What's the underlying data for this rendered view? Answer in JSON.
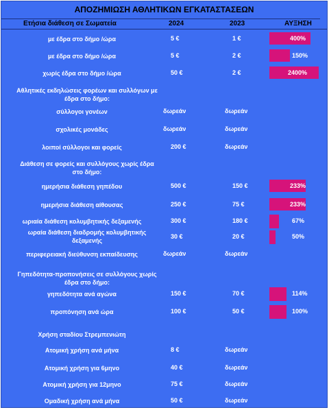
{
  "title": "ΑΠΟΖΗΜΙΩΣΗ ΑΘΛΗΤΙΚΩΝ ΕΓΚΑΤΑΣΤΑΣΕΩΝ",
  "columns": {
    "desc": "Ετήσια διάθεση σε Σωματεία",
    "y2024": "2024",
    "y2023": "2023",
    "increase": "ΑΥΞΗΣΗ"
  },
  "colors": {
    "background": "#3d6df2",
    "bar": "#d6137a"
  },
  "rows": [
    {
      "label": "με έδρα στο δήμο /ώρα",
      "v2024": "5 €",
      "v2023": "1 €",
      "increase": "400%",
      "increase_value": 400
    },
    {
      "label": "με έδρα στο δήμο /ώρα",
      "v2024": "5 €",
      "v2023": "2 €",
      "increase": "150%",
      "increase_value": 150
    },
    {
      "label": "χωρίς έδρα στο δήμο /ώρα",
      "v2024": "50 €",
      "v2023": "2 €",
      "increase": "2400%",
      "increase_value": 2400
    },
    {
      "label": "Αθλητικές εκδηλώσεις φορέων και συλλόγων με έδρα στο δήμο:",
      "v2024": "",
      "v2023": "",
      "increase": ""
    },
    {
      "label": "σύλλογοι γονέων",
      "v2024": "δωρεάν",
      "v2023": "δωρεάν",
      "increase": ""
    },
    {
      "label": "σχολικές μονάδες",
      "v2024": "δωρεάν",
      "v2023": "δωρεάν",
      "increase": ""
    },
    {
      "label": "λοιποί σύλλογοι και φορείς",
      "v2024": "200 €",
      "v2023": "δωρεάν",
      "increase": ""
    },
    {
      "label": "Διάθεση σε φορείς και συλλόγους χωρίς έδρα στο δήμο:",
      "v2024": "",
      "v2023": "",
      "increase": ""
    },
    {
      "label": "ημερήσια διάθεση γηπέδου",
      "v2024": "500 €",
      "v2023": "150 €",
      "increase": "233%",
      "increase_value": 233
    },
    {
      "label": "ημερήσια διάθεση αίθουσας",
      "v2024": "250 €",
      "v2023": "75 €",
      "increase": "233%",
      "increase_value": 233
    },
    {
      "label": "ωριαία διάθεση κολυμβητικής δεξαμενής",
      "v2024": "300 €",
      "v2023": "180 €",
      "increase": "67%",
      "increase_value": 67
    },
    {
      "label": "ωραία διάθεση διαδρομής κολυμβητικής δεξαμενής",
      "v2024": "30 €",
      "v2023": "20 €",
      "increase": "50%",
      "increase_value": 50
    },
    {
      "label": "περιφερειακή διεύθυνση εκπαίδευσης",
      "v2024": "δωρεάν",
      "v2023": "δωρεάν",
      "increase": ""
    },
    {
      "label": "Γηπεδότητα-προπονήσεις σε συλλόγους χωρίς έδρα στο δήμο:",
      "v2024": "",
      "v2023": "",
      "increase": ""
    },
    {
      "label": "γηπεδότητα ανά αγώνα",
      "v2024": "150 €",
      "v2023": "70 €",
      "increase": "114%",
      "increase_value": 114
    },
    {
      "label": "προπόνηση ανά ώρα",
      "v2024": "100 €",
      "v2023": "50 €",
      "increase": "100%",
      "increase_value": 100
    },
    {
      "label": "Χρήση σταδίου Στρεμπενιώτη",
      "v2024": "",
      "v2023": "",
      "increase": ""
    },
    {
      "label": "Ατομική χρήση ανά μήνα",
      "v2024": "8 €",
      "v2023": "δωρεάν",
      "increase": ""
    },
    {
      "label": "Ατομική χρήση για 6μηνο",
      "v2024": "40 €",
      "v2023": "δωρεάν",
      "increase": ""
    },
    {
      "label": "Ατομική χρήση για 12μηνο",
      "v2024": "75 €",
      "v2023": "δωρεάν",
      "increase": ""
    },
    {
      "label": "Ομαδική χρήση ανά μήνα",
      "v2024": "50 €",
      "v2023": "δωρεάν",
      "increase": ""
    }
  ]
}
